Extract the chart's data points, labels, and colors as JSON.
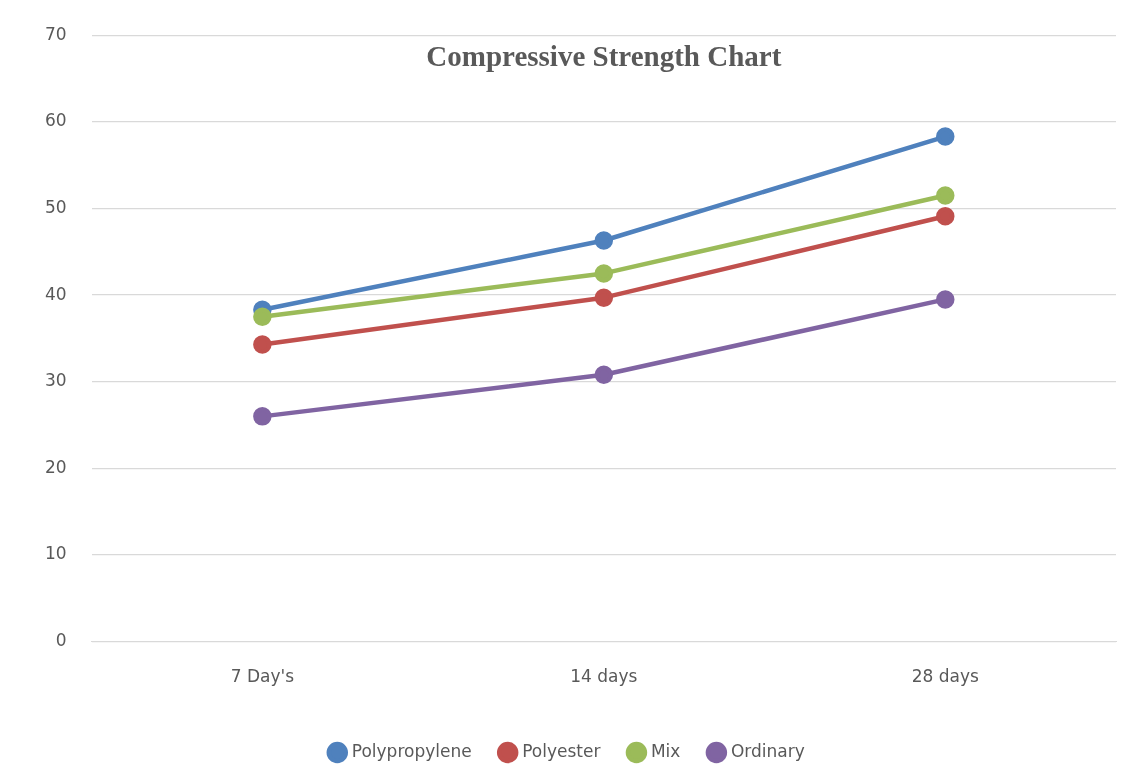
{
  "chart_data": {
    "type": "line",
    "title": "Compressive Strength Chart",
    "categories": [
      "7 Day's",
      "14 days",
      "28 days"
    ],
    "series": [
      {
        "name": "Polypropylene",
        "color": "#4f81bd",
        "values": [
          38.3,
          46.3,
          58.3
        ]
      },
      {
        "name": "Polyester",
        "color": "#c0504d",
        "values": [
          34.3,
          39.7,
          49.1
        ]
      },
      {
        "name": "Mix",
        "color": "#9bbb59",
        "values": [
          37.5,
          42.5,
          51.5
        ]
      },
      {
        "name": "Ordinary",
        "color": "#8064a2",
        "values": [
          26.0,
          30.8,
          39.5
        ]
      }
    ],
    "ylim": [
      0,
      70
    ],
    "yticks": [
      0,
      10,
      20,
      30,
      40,
      50,
      60,
      70
    ],
    "grid": "y",
    "legend": "bottom",
    "marker": "circle",
    "line_style": "solid"
  }
}
